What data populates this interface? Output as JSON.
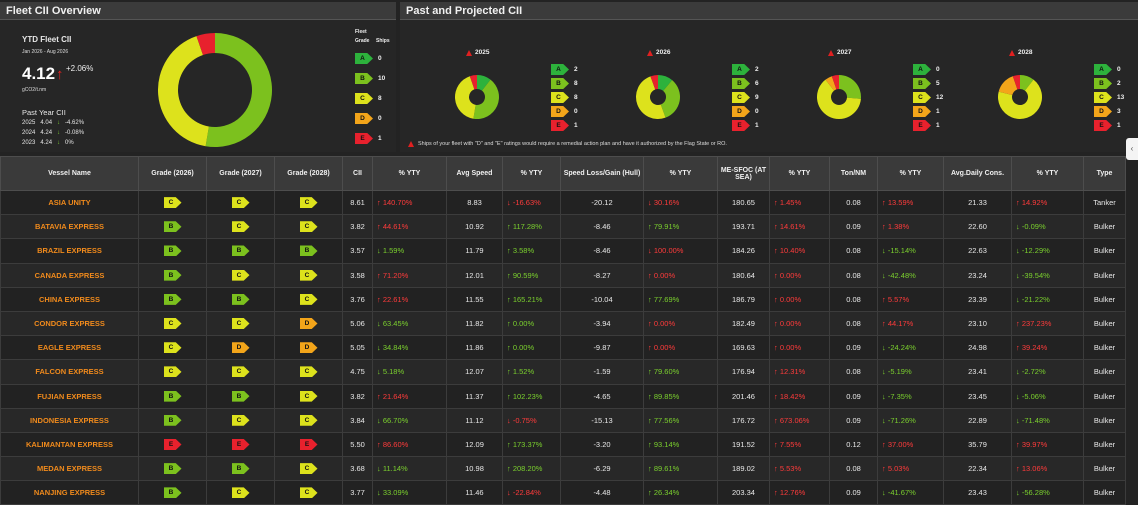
{
  "fleet_panel": {
    "title": "Fleet CII Overview",
    "ytd_title": "YTD Fleet CII",
    "ytd_period": "Jan 2026 - Aug 2026",
    "ytd_value": "4.12",
    "ytd_change": "+2.06%",
    "ytd_unit": "gCO2/t.nm",
    "past_year_title": "Past Year CII",
    "past_years": [
      {
        "year": "2025",
        "value": "4.04",
        "change": "-4.62%"
      },
      {
        "year": "2024",
        "value": "4.24",
        "change": "-0.08%"
      },
      {
        "year": "2023",
        "value": "4.24",
        "change": "0%"
      }
    ],
    "legend_title": "Fleet",
    "legend_grade": "Grade",
    "legend_ships": "Ships",
    "grades": [
      {
        "grade": "A",
        "count": "0",
        "color": "#2db23c"
      },
      {
        "grade": "B",
        "count": "10",
        "color": "#7cc11e"
      },
      {
        "grade": "C",
        "count": "8",
        "color": "#dde21c"
      },
      {
        "grade": "D",
        "count": "0",
        "color": "#f3a51a"
      },
      {
        "grade": "E",
        "count": "1",
        "color": "#e8212d"
      }
    ],
    "donut": [
      0,
      10,
      8,
      0,
      1
    ]
  },
  "past_panel": {
    "title": "Past and Projected CII",
    "years": [
      {
        "year": "2025",
        "counts": [
          "2",
          "8",
          "8",
          "0",
          "1"
        ],
        "donut": [
          2,
          8,
          8,
          0,
          1
        ]
      },
      {
        "year": "2026",
        "counts": [
          "2",
          "6",
          "9",
          "0",
          "1"
        ],
        "donut": [
          2,
          6,
          9,
          0,
          1
        ]
      },
      {
        "year": "2027",
        "counts": [
          "0",
          "5",
          "12",
          "1",
          "1"
        ],
        "donut": [
          0,
          5,
          12,
          1,
          1
        ]
      },
      {
        "year": "2028",
        "counts": [
          "0",
          "2",
          "13",
          "3",
          "1"
        ],
        "donut": [
          0,
          2,
          13,
          3,
          1
        ]
      }
    ],
    "note": "Ships of your fleet with \"D\" and \"E\" ratings would require a remedial action plan and have it authorized by the Flag State or RO."
  },
  "table": {
    "headers": [
      "Vessel Name",
      "Grade (2026)",
      "Grade (2027)",
      "Grade (2028)",
      "CII",
      "% YTY",
      "Avg Speed",
      "% YTY",
      "Speed Loss/Gain (Hull)",
      "% YTY",
      "ME-SFOC (AT SEA)",
      "% YTY",
      "Ton/NM",
      "% YTY",
      "Avg.Daily Cons.",
      "% YTY",
      "Type"
    ],
    "rows": [
      {
        "name": "ASIA UNITY",
        "g26": "C",
        "g27": "C",
        "g28": "C",
        "cii": "8.61",
        "cii_yty": "140.70%",
        "cii_dir": "up-red",
        "speed": "8.83",
        "speed_yty": "-16.63%",
        "speed_dir": "down-red",
        "loss": "-20.12",
        "loss_yty": "30.16%",
        "loss_dir": "down-red",
        "sfoc": "180.65",
        "sfoc_yty": "1.45%",
        "sfoc_dir": "up-red",
        "ton": "0.08",
        "ton_yty": "13.59%",
        "ton_dir": "up-red",
        "cons": "21.33",
        "cons_yty": "14.92%",
        "cons_dir": "up-red",
        "type": "Tanker"
      },
      {
        "name": "BATAVIA EXPRESS",
        "g26": "B",
        "g27": "C",
        "g28": "C",
        "cii": "3.82",
        "cii_yty": "44.61%",
        "cii_dir": "up-red",
        "speed": "10.92",
        "speed_yty": "117.28%",
        "speed_dir": "up-green",
        "loss": "-8.46",
        "loss_yty": "79.91%",
        "loss_dir": "up-green",
        "sfoc": "193.71",
        "sfoc_yty": "14.61%",
        "sfoc_dir": "up-red",
        "ton": "0.09",
        "ton_yty": "1.38%",
        "ton_dir": "up-red",
        "cons": "22.60",
        "cons_yty": "-0.09%",
        "cons_dir": "down-green",
        "type": "Bulker"
      },
      {
        "name": "BRAZIL EXPRESS",
        "g26": "B",
        "g27": "B",
        "g28": "B",
        "cii": "3.57",
        "cii_yty": "1.59%",
        "cii_dir": "down-green",
        "speed": "11.79",
        "speed_yty": "3.58%",
        "speed_dir": "up-green",
        "loss": "-8.46",
        "loss_yty": "100.00%",
        "loss_dir": "down-red",
        "sfoc": "184.26",
        "sfoc_yty": "10.40%",
        "sfoc_dir": "up-red",
        "ton": "0.08",
        "ton_yty": "-15.14%",
        "ton_dir": "down-green",
        "cons": "22.63",
        "cons_yty": "-12.29%",
        "cons_dir": "down-green",
        "type": "Bulker"
      },
      {
        "name": "CANADA EXPRESS",
        "g26": "B",
        "g27": "C",
        "g28": "C",
        "cii": "3.58",
        "cii_yty": "71.20%",
        "cii_dir": "up-red",
        "speed": "12.01",
        "speed_yty": "90.59%",
        "speed_dir": "up-green",
        "loss": "-8.27",
        "loss_yty": "0.00%",
        "loss_dir": "up-red",
        "sfoc": "180.64",
        "sfoc_yty": "0.00%",
        "sfoc_dir": "up-red",
        "ton": "0.08",
        "ton_yty": "-42.48%",
        "ton_dir": "down-green",
        "cons": "23.24",
        "cons_yty": "-39.54%",
        "cons_dir": "down-green",
        "type": "Bulker"
      },
      {
        "name": "CHINA EXPRESS",
        "g26": "B",
        "g27": "B",
        "g28": "C",
        "cii": "3.76",
        "cii_yty": "22.61%",
        "cii_dir": "up-red",
        "speed": "11.55",
        "speed_yty": "165.21%",
        "speed_dir": "up-green",
        "loss": "-10.04",
        "loss_yty": "77.69%",
        "loss_dir": "up-green",
        "sfoc": "186.79",
        "sfoc_yty": "0.00%",
        "sfoc_dir": "up-red",
        "ton": "0.08",
        "ton_yty": "5.57%",
        "ton_dir": "up-red",
        "cons": "23.39",
        "cons_yty": "-21.22%",
        "cons_dir": "down-green",
        "type": "Bulker"
      },
      {
        "name": "CONDOR EXPRESS",
        "g26": "C",
        "g27": "C",
        "g28": "D",
        "cii": "5.06",
        "cii_yty": "63.45%",
        "cii_dir": "down-green",
        "speed": "11.82",
        "speed_yty": "0.00%",
        "speed_dir": "up-green",
        "loss": "-3.94",
        "loss_yty": "0.00%",
        "loss_dir": "up-red",
        "sfoc": "182.49",
        "sfoc_yty": "0.00%",
        "sfoc_dir": "up-red",
        "ton": "0.08",
        "ton_yty": "44.17%",
        "ton_dir": "up-red",
        "cons": "23.10",
        "cons_yty": "237.23%",
        "cons_dir": "up-red",
        "type": "Bulker"
      },
      {
        "name": "EAGLE EXPRESS",
        "g26": "C",
        "g27": "D",
        "g28": "D",
        "cii": "5.05",
        "cii_yty": "34.84%",
        "cii_dir": "down-green",
        "speed": "11.86",
        "speed_yty": "0.00%",
        "speed_dir": "up-green",
        "loss": "-9.87",
        "loss_yty": "0.00%",
        "loss_dir": "up-red",
        "sfoc": "169.63",
        "sfoc_yty": "0.00%",
        "sfoc_dir": "up-red",
        "ton": "0.09",
        "ton_yty": "-24.24%",
        "ton_dir": "down-green",
        "cons": "24.98",
        "cons_yty": "39.24%",
        "cons_dir": "up-red",
        "type": "Bulker"
      },
      {
        "name": "FALCON EXPRESS",
        "g26": "C",
        "g27": "C",
        "g28": "C",
        "cii": "4.75",
        "cii_yty": "5.18%",
        "cii_dir": "down-green",
        "speed": "12.07",
        "speed_yty": "1.52%",
        "speed_dir": "up-green",
        "loss": "-1.59",
        "loss_yty": "79.60%",
        "loss_dir": "up-green",
        "sfoc": "176.94",
        "sfoc_yty": "12.31%",
        "sfoc_dir": "up-red",
        "ton": "0.08",
        "ton_yty": "-5.19%",
        "ton_dir": "down-green",
        "cons": "23.41",
        "cons_yty": "-2.72%",
        "cons_dir": "down-green",
        "type": "Bulker"
      },
      {
        "name": "FUJIAN EXPRESS",
        "g26": "B",
        "g27": "B",
        "g28": "C",
        "cii": "3.82",
        "cii_yty": "21.64%",
        "cii_dir": "up-red",
        "speed": "11.37",
        "speed_yty": "102.23%",
        "speed_dir": "up-green",
        "loss": "-4.65",
        "loss_yty": "89.85%",
        "loss_dir": "up-green",
        "sfoc": "201.46",
        "sfoc_yty": "18.42%",
        "sfoc_dir": "up-red",
        "ton": "0.09",
        "ton_yty": "-7.35%",
        "ton_dir": "down-green",
        "cons": "23.45",
        "cons_yty": "-5.06%",
        "cons_dir": "down-green",
        "type": "Bulker"
      },
      {
        "name": "INDONESIA EXPRESS",
        "g26": "B",
        "g27": "C",
        "g28": "C",
        "cii": "3.84",
        "cii_yty": "66.70%",
        "cii_dir": "down-green",
        "speed": "11.12",
        "speed_yty": "-0.75%",
        "speed_dir": "down-red",
        "loss": "-15.13",
        "loss_yty": "77.56%",
        "loss_dir": "up-green",
        "sfoc": "176.72",
        "sfoc_yty": "673.06%",
        "sfoc_dir": "up-red",
        "ton": "0.09",
        "ton_yty": "-71.26%",
        "ton_dir": "down-green",
        "cons": "22.89",
        "cons_yty": "-71.48%",
        "cons_dir": "down-green",
        "type": "Bulker"
      },
      {
        "name": "KALIMANTAN EXPRESS",
        "g26": "E",
        "g27": "E",
        "g28": "E",
        "cii": "5.50",
        "cii_yty": "86.60%",
        "cii_dir": "up-red",
        "speed": "12.09",
        "speed_yty": "173.37%",
        "speed_dir": "up-green",
        "loss": "-3.20",
        "loss_yty": "93.14%",
        "loss_dir": "up-green",
        "sfoc": "191.52",
        "sfoc_yty": "7.55%",
        "sfoc_dir": "up-red",
        "ton": "0.12",
        "ton_yty": "37.00%",
        "ton_dir": "up-red",
        "cons": "35.79",
        "cons_yty": "39.97%",
        "cons_dir": "up-red",
        "type": "Bulker"
      },
      {
        "name": "MEDAN EXPRESS",
        "g26": "B",
        "g27": "B",
        "g28": "C",
        "cii": "3.68",
        "cii_yty": "11.14%",
        "cii_dir": "down-green",
        "speed": "10.98",
        "speed_yty": "208.20%",
        "speed_dir": "up-green",
        "loss": "-6.29",
        "loss_yty": "89.61%",
        "loss_dir": "up-green",
        "sfoc": "189.02",
        "sfoc_yty": "5.53%",
        "sfoc_dir": "up-red",
        "ton": "0.08",
        "ton_yty": "5.03%",
        "ton_dir": "up-red",
        "cons": "22.34",
        "cons_yty": "13.06%",
        "cons_dir": "up-red",
        "type": "Bulker"
      },
      {
        "name": "NANJING EXPRESS",
        "g26": "B",
        "g27": "C",
        "g28": "C",
        "cii": "3.77",
        "cii_yty": "33.09%",
        "cii_dir": "down-green",
        "speed": "11.46",
        "speed_yty": "-22.84%",
        "speed_dir": "down-red",
        "loss": "-4.48",
        "loss_yty": "26.34%",
        "loss_dir": "up-green",
        "sfoc": "203.34",
        "sfoc_yty": "12.76%",
        "sfoc_dir": "up-red",
        "ton": "0.09",
        "ton_yty": "-41.67%",
        "ton_dir": "down-green",
        "cons": "23.43",
        "cons_yty": "-56.28%",
        "cons_dir": "down-green",
        "type": "Bulker"
      }
    ]
  },
  "grade_colors": {
    "A": "#2db23c",
    "B": "#7cc11e",
    "C": "#dde21c",
    "D": "#f3a51a",
    "E": "#e8212d"
  }
}
